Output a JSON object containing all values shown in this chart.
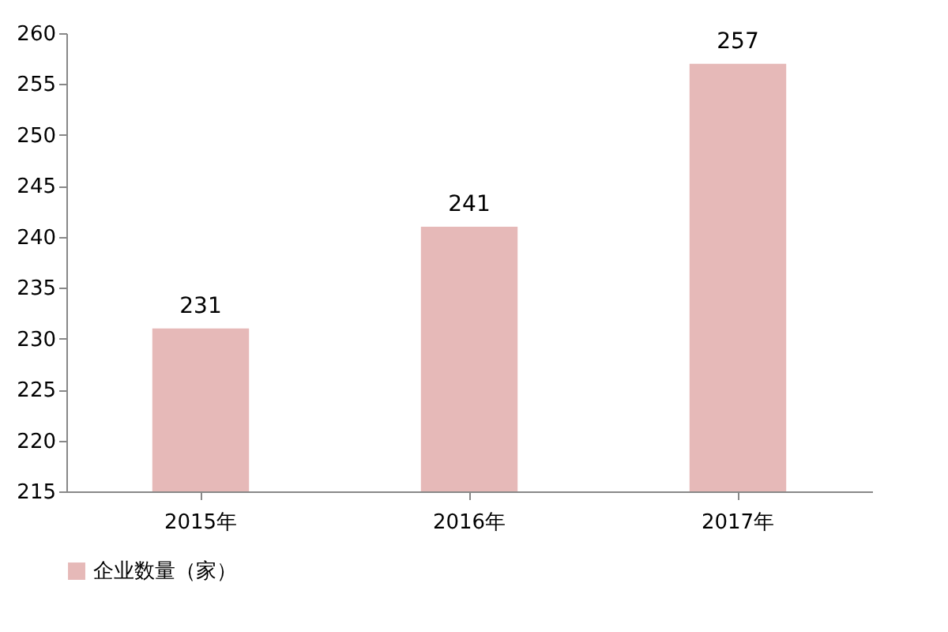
{
  "chart_data": {
    "type": "bar",
    "categories": [
      "2015年",
      "2016年",
      "2017年"
    ],
    "series": [
      {
        "name": "企业数量（家）",
        "color": "#e6b9b8",
        "values": [
          231,
          241,
          257
        ]
      }
    ],
    "ylim": [
      215,
      260
    ],
    "yticks": [
      215,
      220,
      225,
      230,
      235,
      240,
      245,
      250,
      255,
      260
    ],
    "grid": false,
    "legend": "bottom",
    "data_labels": true
  }
}
